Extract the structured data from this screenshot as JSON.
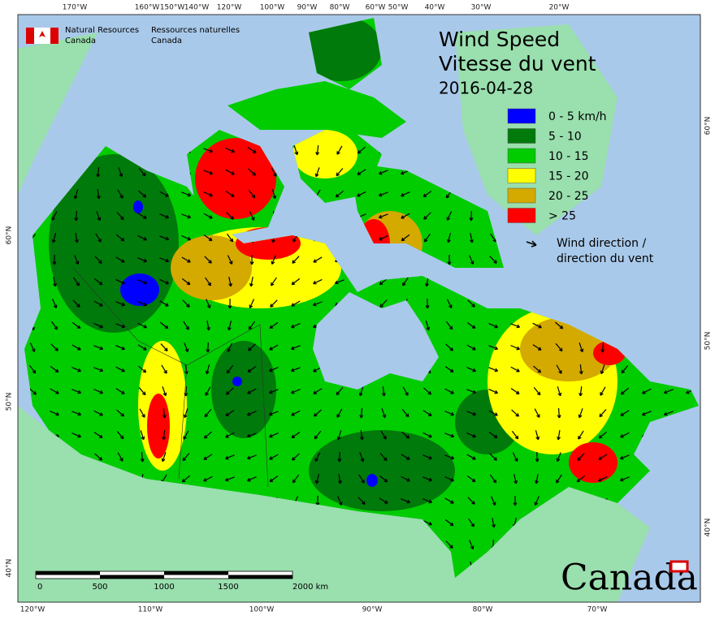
{
  "header": {
    "agency_en": [
      "Natural Resources",
      "Canada"
    ],
    "agency_fr": [
      "Ressources naturelles",
      "Canada"
    ]
  },
  "title": {
    "lines": [
      "Wind Speed",
      "Vitesse du vent"
    ],
    "date": "2016-04-28"
  },
  "legend": {
    "items": [
      {
        "label": "0 - 5 km/h",
        "color": "#0000ff"
      },
      {
        "label": "5 - 10",
        "color": "#007a0a"
      },
      {
        "label": "10 - 15",
        "color": "#00cc00"
      },
      {
        "label": "15 - 20",
        "color": "#ffff00"
      },
      {
        "label": "20 - 25",
        "color": "#d4a900"
      },
      {
        "label": "> 25",
        "color": "#ff0000"
      }
    ],
    "arrow_label": [
      "Wind direction /",
      "direction du vent"
    ]
  },
  "graticule": {
    "top": [
      "170°W",
      "160°W",
      "150°W",
      "140°W",
      "120°W",
      "100°W",
      "90°W",
      "80°W",
      "60°W",
      "50°W",
      "40°W",
      "30°W",
      "20°W"
    ],
    "bottom": [
      "120°W",
      "110°W",
      "100°W",
      "90°W",
      "80°W",
      "70°W"
    ],
    "left": [
      "60°N",
      "50°N",
      "40°N"
    ],
    "right": [
      "60°N",
      "50°N",
      "40°N"
    ]
  },
  "scale_bar": {
    "labels": [
      "0",
      "500",
      "1000",
      "1500",
      "2000 km"
    ]
  },
  "wordmark": "Canada"
}
